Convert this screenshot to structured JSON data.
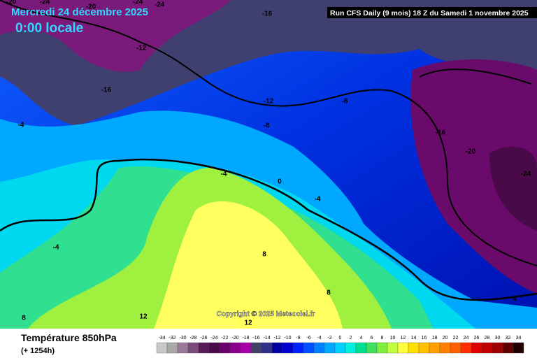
{
  "header": {
    "date": "Mercredi 24 décembre 2025",
    "time": "0:00 locale",
    "run": "Run CFS Daily (9 mois) 18 Z du Samedi 1 novembre 2025"
  },
  "map": {
    "contour_labels": [
      -20,
      -24,
      -20,
      -24,
      -24,
      -16,
      -12,
      -16,
      -12,
      -8,
      -4,
      -8,
      -16,
      -20,
      -24,
      -4,
      0,
      -4,
      -4,
      8,
      8,
      4,
      12,
      12,
      8
    ],
    "copyright": "Copyright © 2025 Meteociel.fr"
  },
  "footer": {
    "title": "Température 850hPa",
    "lead": "(+ 1254h)",
    "scale": {
      "values": [
        -34,
        -32,
        -30,
        -28,
        -26,
        -24,
        -22,
        -20,
        -18,
        -16,
        -14,
        -12,
        -10,
        -8,
        -6,
        -4,
        -2,
        0,
        2,
        4,
        6,
        8,
        10,
        12,
        14,
        16,
        18,
        20,
        22,
        24,
        26,
        28,
        30,
        32,
        34
      ],
      "colors": [
        "#c8c8c8",
        "#a8a8a8",
        "#9a7a9a",
        "#7a4a7a",
        "#5a1a5a",
        "#4a0a4a",
        "#6a006a",
        "#8a008a",
        "#a800a8",
        "#404068",
        "#30308a",
        "#0000a0",
        "#0000d0",
        "#0020ff",
        "#0050ff",
        "#0080ff",
        "#00a8ff",
        "#00d0ff",
        "#00f0e0",
        "#00e090",
        "#40e060",
        "#80f040",
        "#c0ff40",
        "#ffff40",
        "#ffe000",
        "#ffc000",
        "#ffa000",
        "#ff8000",
        "#ff6000",
        "#ff3000",
        "#e00000",
        "#c00000",
        "#a00000",
        "#600000",
        "#200000"
      ]
    }
  }
}
